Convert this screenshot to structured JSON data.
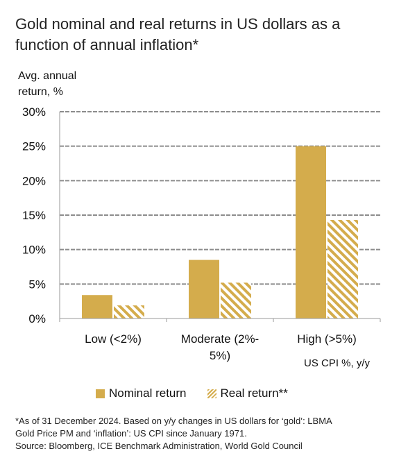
{
  "header": {
    "title_line1": "Gold nominal and real returns in US dollars as a",
    "title_line2": "function of annual inflation*"
  },
  "axis": {
    "ylabel_line1": "Avg. annual",
    "ylabel_line2": "return, %",
    "xunit": "US CPI %, y/y"
  },
  "legend": {
    "nominal": "Nominal return",
    "real": "Real return**"
  },
  "footnote": {
    "line1": "*As of 31 December 2024. Based on y/y changes in US dollars for ‘gold’: LBMA",
    "line2": "Gold Price PM and ‘inflation’: US CPI since January 1971.",
    "line3": "Source: Bloomberg, ICE Benchmark Administration, World Gold Council"
  },
  "colors": {
    "gold": "#d4ac4c",
    "grid": "#8c8c8c",
    "axis": "#9a9a9a"
  },
  "chart_data": {
    "type": "bar",
    "title": "Gold nominal and real returns in US dollars as a function of annual inflation*",
    "ylabel": "Avg. annual return, %",
    "xlabel": "US CPI %, y/y",
    "categories": [
      "Low (<2%)",
      "Moderate (2%-5%)",
      "High (>5%)"
    ],
    "category_label_lines": [
      [
        "Low (<2%)"
      ],
      [
        "Moderate (2%-",
        "5%)"
      ],
      [
        "High (>5%)"
      ]
    ],
    "series": [
      {
        "name": "Nominal return",
        "values": [
          3.4,
          8.5,
          25.0
        ],
        "style": "solid"
      },
      {
        "name": "Real return**",
        "values": [
          1.9,
          5.2,
          14.3
        ],
        "style": "hatched"
      }
    ],
    "ylim": [
      0,
      30
    ],
    "yticks": [
      0,
      5,
      10,
      15,
      20,
      25,
      30
    ],
    "ytick_labels": [
      "0%",
      "5%",
      "10%",
      "15%",
      "20%",
      "25%",
      "30%"
    ],
    "grid": true,
    "legend_position": "bottom"
  }
}
